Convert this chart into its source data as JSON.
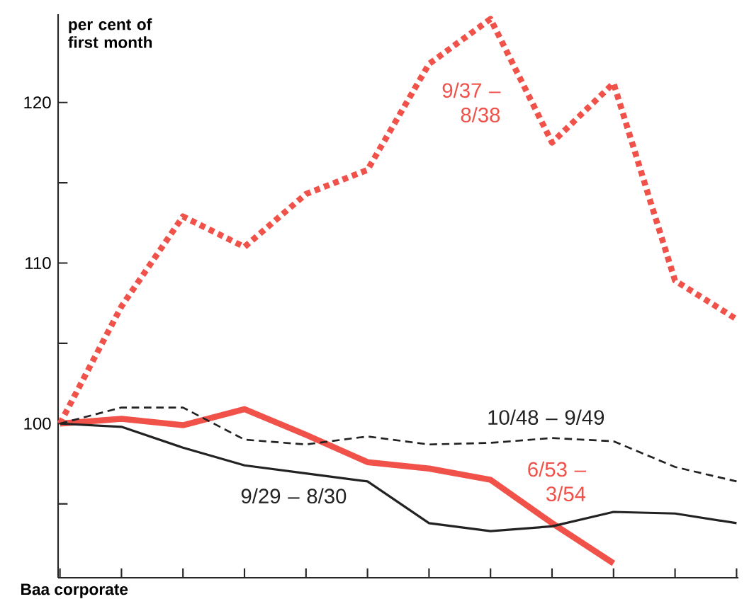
{
  "chart_data": {
    "type": "line",
    "ylabel": "per cent of first month",
    "categories": [
      null,
      null,
      null,
      null,
      null,
      null,
      null,
      null,
      null,
      null,
      null,
      null
    ],
    "ylim": [
      90.4,
      125.5
    ],
    "yticks": [
      {
        "value": 95,
        "label": null
      },
      100,
      {
        "value": 105,
        "label": null
      },
      110,
      {
        "value": 115,
        "label": null
      },
      120
    ],
    "tick_labels": "y",
    "grid": false,
    "legend": false,
    "marker": "none",
    "series": [
      {
        "name": "9/37 – 8/38",
        "color": "#f0524a",
        "line_style": "dotted",
        "values": [
          100,
          107.3,
          112.9,
          111.0,
          114.3,
          115.8,
          122.4,
          125.2,
          117.5,
          121.2,
          108.9,
          106.5
        ]
      },
      {
        "name": "6/53 – 3/54",
        "color": "#f0524a",
        "line_style": "solid",
        "values": [
          100,
          100.3,
          99.9,
          100.9,
          99.3,
          97.6,
          97.2,
          96.5,
          93.8,
          91.3,
          null,
          null
        ]
      },
      {
        "name": "10/48 – 9/49",
        "color": "#222222",
        "line_style": "dashed",
        "values": [
          100,
          101.0,
          101.0,
          99.0,
          98.7,
          99.2,
          98.7,
          98.8,
          99.1,
          98.9,
          97.3,
          96.4
        ]
      },
      {
        "name": "9/29 – 8/30",
        "color": "#222222",
        "line_style": "solid",
        "values": [
          100,
          99.8,
          98.5,
          97.4,
          96.9,
          96.4,
          93.8,
          93.3,
          93.6,
          94.5,
          94.4,
          93.8
        ]
      }
    ],
    "annotations": [
      "Baa corporate"
    ]
  }
}
